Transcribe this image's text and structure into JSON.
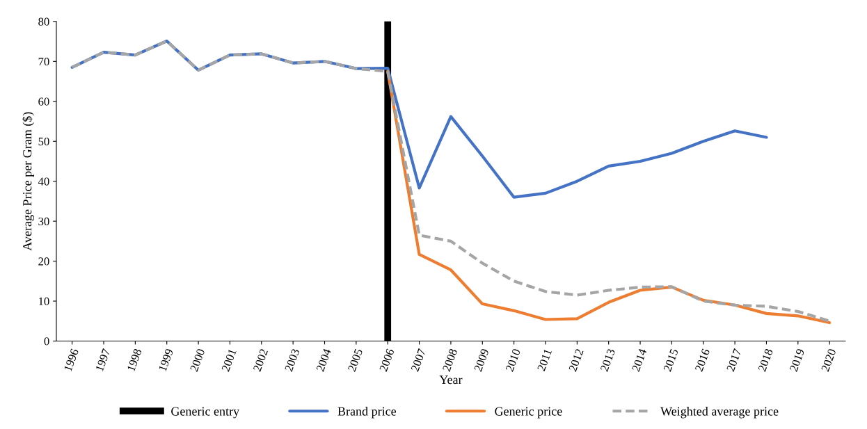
{
  "chart_data": {
    "type": "line",
    "xlabel": "Year",
    "ylabel": "Average Price per Gram ($)",
    "categories": [
      "1996",
      "1997",
      "1998",
      "1999",
      "2000",
      "2001",
      "2002",
      "2003",
      "2004",
      "2005",
      "2006",
      "2007",
      "2008",
      "2009",
      "2010",
      "2011",
      "2012",
      "2013",
      "2014",
      "2015",
      "2016",
      "2017",
      "2018",
      "2019",
      "2020"
    ],
    "series": [
      {
        "name": "Brand price",
        "color": "#4472c4",
        "line_style": "solid",
        "values": [
          68.5,
          72.3,
          71.6,
          75.1,
          67.8,
          71.6,
          71.9,
          69.6,
          70.0,
          68.2,
          68.3,
          38.3,
          56.2,
          46.3,
          36.0,
          37.0,
          40.0,
          43.8,
          45.0,
          47.0,
          50.0,
          52.6,
          51.0,
          null,
          null
        ]
      },
      {
        "name": "Generic price",
        "color": "#ed7d31",
        "line_style": "solid",
        "values": [
          null,
          null,
          null,
          null,
          null,
          null,
          null,
          null,
          null,
          null,
          67.5,
          21.7,
          17.8,
          9.3,
          7.6,
          5.4,
          5.6,
          9.7,
          12.7,
          13.5,
          10.2,
          9.0,
          6.9,
          6.3,
          4.6
        ]
      },
      {
        "name": "Weighted average price",
        "color": "#a5a5a5",
        "line_style": "dashed",
        "values": [
          68.5,
          72.3,
          71.6,
          75.1,
          67.8,
          71.6,
          71.9,
          69.6,
          70.0,
          68.2,
          67.5,
          26.5,
          25.0,
          19.5,
          15.0,
          12.4,
          11.5,
          12.7,
          13.5,
          13.6,
          10.0,
          9.0,
          8.7,
          7.4,
          5.0
        ]
      }
    ],
    "ref_lines": [
      {
        "axis": "x",
        "value": "2006",
        "label": "Generic entry",
        "color": "#000000",
        "line_style": "solid"
      }
    ],
    "ylim": [
      0,
      80
    ],
    "yticks": [
      0,
      10,
      20,
      30,
      40,
      50,
      60,
      70,
      80
    ],
    "grid": false,
    "legend": "bottom",
    "marker": "none"
  }
}
